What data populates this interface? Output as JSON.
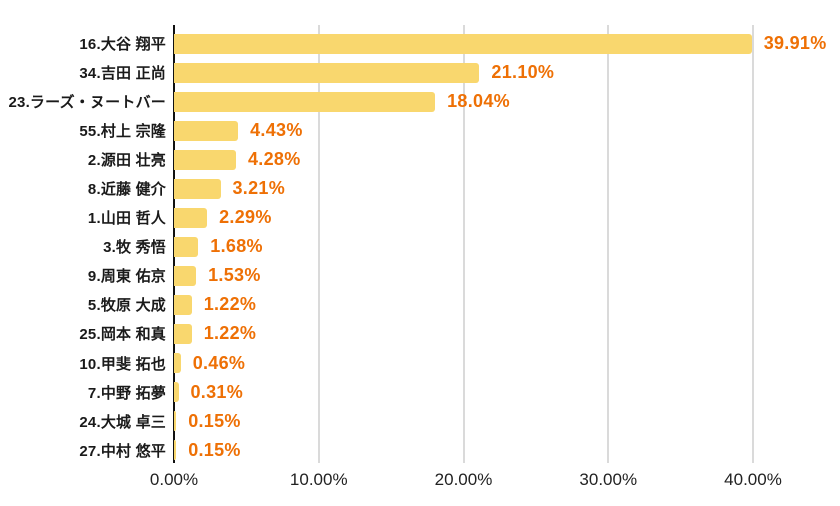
{
  "chart_data": {
    "type": "bar",
    "orientation": "horizontal",
    "title": "",
    "xlabel": "",
    "ylabel": "",
    "categories": [
      "16.大谷 翔平",
      "34.吉田 正尚",
      "23.ラーズ・ヌートバー",
      "55.村上 宗隆",
      "2.源田 壮亮",
      "8.近藤 健介",
      "1.山田 哲人",
      "3.牧 秀悟",
      "9.周東 佑京",
      "5.牧原 大成",
      "25.岡本 和真",
      "10.甲斐 拓也",
      "7.中野 拓夢",
      "24.大城 卓三",
      "27.中村 悠平"
    ],
    "values": [
      39.91,
      21.1,
      18.04,
      4.43,
      4.28,
      3.21,
      2.29,
      1.68,
      1.53,
      1.22,
      1.22,
      0.46,
      0.31,
      0.15,
      0.15
    ],
    "value_labels": [
      "39.91%",
      "21.10%",
      "18.04%",
      "4.43%",
      "4.28%",
      "3.21%",
      "2.29%",
      "1.68%",
      "1.53%",
      "1.22%",
      "1.22%",
      "0.46%",
      "0.31%",
      "0.15%",
      "0.15%"
    ],
    "x_ticks": [
      "0.00%",
      "10.00%",
      "20.00%",
      "30.00%",
      "40.00%"
    ],
    "xlim": [
      0,
      40
    ],
    "grid": "vertical",
    "legend": "none",
    "colors": {
      "bar": "#f9d76e",
      "value_label": "#ee7005",
      "category_label": "#1a1a1a",
      "tick_label": "#222222",
      "gridline": "#dadada",
      "axis_line": "#111111",
      "background": "#ffffff"
    }
  }
}
